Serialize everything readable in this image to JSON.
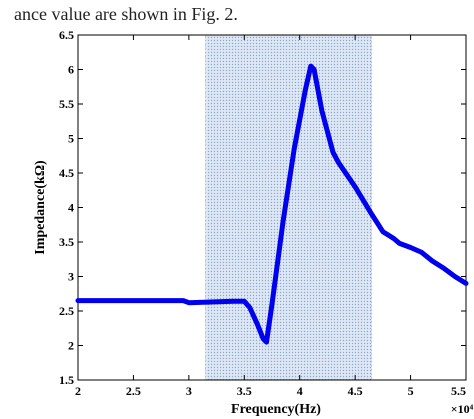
{
  "page": {
    "caption_fragment": "ance value are shown in Fig. 2."
  },
  "colors": {
    "series_line": "#0000ee",
    "highlight_fill": "#9ab4d8",
    "axis": "#000000",
    "background": "#ffffff"
  },
  "chart_data": {
    "type": "line",
    "title": "",
    "xlabel": "Frequency(Hz)",
    "ylabel": "Impedance(kΩ)",
    "x_scale_label": "×10⁴",
    "xlim": [
      2,
      5.5
    ],
    "ylim": [
      1.5,
      6.5
    ],
    "x_ticks": [
      "2",
      "2.5",
      "3",
      "3.5",
      "4",
      "4.5",
      "5",
      "5.5"
    ],
    "x_tick_values": [
      2,
      2.5,
      3,
      3.5,
      4,
      4.5,
      5,
      5.5
    ],
    "y_ticks": [
      "1.5",
      "2",
      "2.5",
      "3",
      "3.5",
      "4",
      "4.5",
      "5",
      "5.5",
      "6",
      "6.5"
    ],
    "y_tick_values": [
      1.5,
      2,
      2.5,
      3,
      3.5,
      4,
      4.5,
      5,
      5.5,
      6,
      6.5
    ],
    "grid": false,
    "highlight_region": {
      "x_start": 3.15,
      "x_end": 4.65
    },
    "series": [
      {
        "x": [
          2.0,
          2.2,
          2.5,
          2.75,
          2.95,
          3.0,
          3.2,
          3.4,
          3.5,
          3.55,
          3.62,
          3.67,
          3.7,
          3.75,
          3.85,
          3.95,
          4.05,
          4.1,
          4.13,
          4.2,
          4.3,
          4.35,
          4.5,
          4.65,
          4.75,
          4.8,
          4.85,
          4.9,
          5.0,
          5.1,
          5.2,
          5.3,
          5.4,
          5.5
        ],
        "y": [
          2.65,
          2.65,
          2.65,
          2.65,
          2.65,
          2.62,
          2.63,
          2.64,
          2.64,
          2.55,
          2.3,
          2.1,
          2.05,
          2.6,
          3.8,
          4.85,
          5.7,
          6.05,
          6.0,
          5.4,
          4.8,
          4.65,
          4.3,
          3.9,
          3.65,
          3.6,
          3.55,
          3.48,
          3.42,
          3.35,
          3.22,
          3.12,
          3.0,
          2.9
        ]
      }
    ]
  }
}
